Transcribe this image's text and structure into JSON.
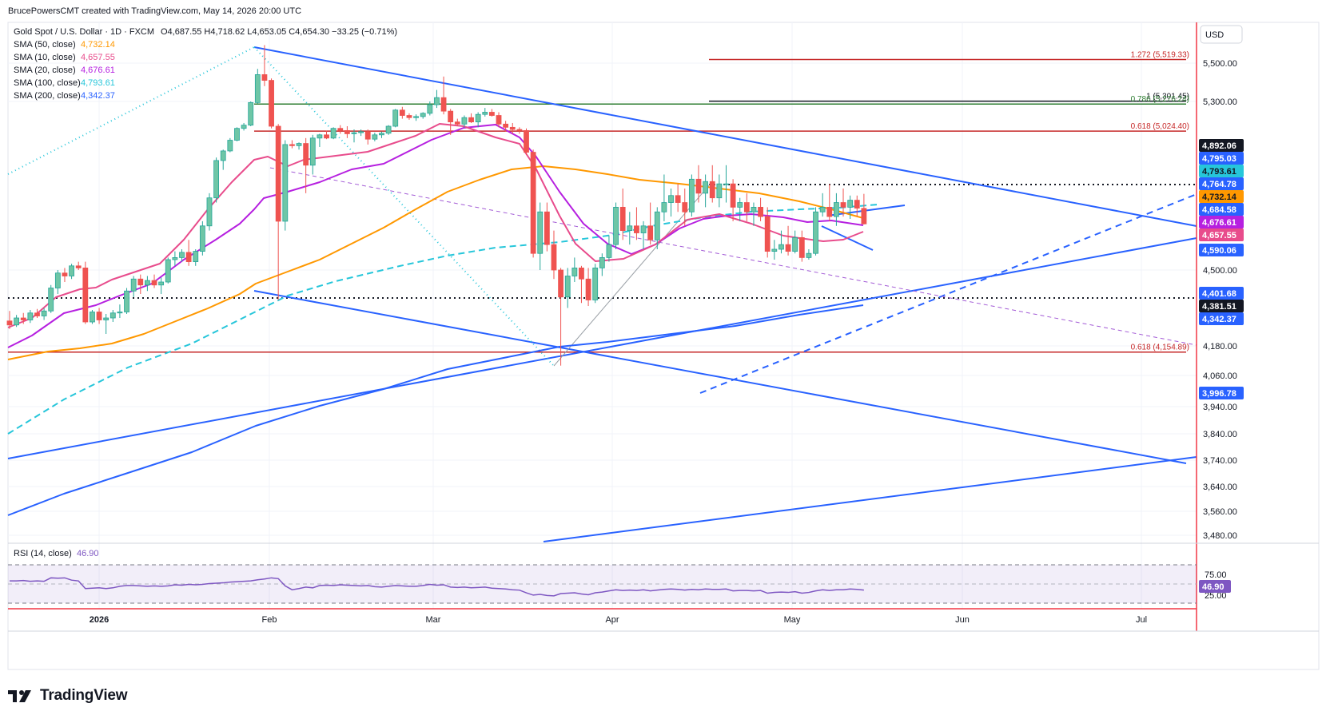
{
  "header": {
    "created_by": "BrucePowersCMT created with TradingView.com, May 14, 2026 20:00 UTC"
  },
  "footer": {
    "brand": "TradingView"
  },
  "colors": {
    "up": "#26a69a",
    "up_fill": "#6ec6a6",
    "down": "#ef5350",
    "sma50": "#ff9800",
    "sma10": "#e84c8c",
    "sma20": "#b620e0",
    "sma100": "#26c6da",
    "sma200": "#2962ff",
    "trend": "#2962ff",
    "fib_red": "#c62828",
    "fib_green": "#2e7d32",
    "rsi": "#7e57c2"
  },
  "chart_data": {
    "type": "candlestick",
    "symbol_line": {
      "name": "Gold Spot / U.S. Dollar · 1D · FXCM",
      "ohlc": "O4,687.55  H4,718.62  L4,653.05  C4,654.30  −33.25 (−0.71%)"
    },
    "legend": [
      {
        "label": "SMA (50, close)",
        "value": "4,732.14",
        "color": "#ff9800"
      },
      {
        "label": "SMA (10, close)",
        "value": "4,657.55",
        "color": "#e84c8c"
      },
      {
        "label": "SMA (20, close)",
        "value": "4,676.61",
        "color": "#b620e0"
      },
      {
        "label": "SMA (100, close)",
        "value": "4,793.61",
        "color": "#26c6da"
      },
      {
        "label": "SMA (200, close)",
        "value": "4,342.37",
        "color": "#2962ff"
      }
    ],
    "currency": "USD",
    "y_ticks": [
      "5,500.00",
      "5,300.00",
      "4,500.00",
      "4,180.00",
      "4,060.00",
      "3,940.00",
      "3,840.00",
      "3,740.00",
      "3,640.00",
      "3,560.00",
      "3,480.00"
    ],
    "x_labels": [
      "2026",
      "Feb",
      "Mar",
      "Apr",
      "May",
      "Jun",
      "Jul"
    ],
    "price_badges": [
      {
        "text": "4,892.06",
        "bg": "#131722",
        "fg": "#ffffff"
      },
      {
        "text": "4,795.03",
        "bg": "#2962ff",
        "fg": "#ffffff"
      },
      {
        "text": "4,793.61",
        "bg": "#26c6da",
        "fg": "#131722"
      },
      {
        "text": "4,764.78",
        "bg": "#2962ff",
        "fg": "#ffffff"
      },
      {
        "text": "4,732.14",
        "bg": "#ff9800",
        "fg": "#131722"
      },
      {
        "text": "4,684.58",
        "bg": "#2962ff",
        "fg": "#ffffff"
      },
      {
        "text": "4,676.61",
        "bg": "#b620e0",
        "fg": "#ffffff"
      },
      {
        "text": "4,657.55",
        "bg": "#e84c8c",
        "fg": "#ffffff"
      },
      {
        "text": "4,590.06",
        "bg": "#2962ff",
        "fg": "#ffffff"
      },
      {
        "text": "4,401.68",
        "bg": "#2962ff",
        "fg": "#ffffff"
      },
      {
        "text": "4,381.51",
        "bg": "#131722",
        "fg": "#ffffff"
      },
      {
        "text": "4,342.37",
        "bg": "#2962ff",
        "fg": "#ffffff"
      },
      {
        "text": "3,996.78",
        "bg": "#2962ff",
        "fg": "#ffffff"
      }
    ],
    "fib_levels": [
      {
        "label": "1.272 (5,519.33)",
        "value": 5519.33,
        "color": "#c62828"
      },
      {
        "label": "1 (5,301.45)",
        "value": 5301.45,
        "color": "#131722"
      },
      {
        "label": "0.786 (5,276.24)",
        "value": 5276.24,
        "color": "#2e7d32"
      },
      {
        "label": "0.618 (5,024.40)",
        "value": 5024.4,
        "color": "#c62828"
      },
      {
        "label": "0.618 (4,154.89)",
        "value": 4154.89,
        "color": "#c62828"
      }
    ],
    "candles": [
      {
        "o": 4305,
        "h": 4355,
        "l": 4265,
        "c": 4285
      },
      {
        "o": 4285,
        "h": 4335,
        "l": 4275,
        "c": 4320
      },
      {
        "o": 4320,
        "h": 4345,
        "l": 4290,
        "c": 4310
      },
      {
        "o": 4310,
        "h": 4360,
        "l": 4295,
        "c": 4345
      },
      {
        "o": 4345,
        "h": 4365,
        "l": 4320,
        "c": 4330
      },
      {
        "o": 4330,
        "h": 4370,
        "l": 4310,
        "c": 4355
      },
      {
        "o": 4355,
        "h": 4450,
        "l": 4345,
        "c": 4440
      },
      {
        "o": 4440,
        "h": 4500,
        "l": 4420,
        "c": 4490
      },
      {
        "o": 4490,
        "h": 4510,
        "l": 4460,
        "c": 4480
      },
      {
        "o": 4480,
        "h": 4530,
        "l": 4470,
        "c": 4520
      },
      {
        "o": 4520,
        "h": 4540,
        "l": 4500,
        "c": 4510
      },
      {
        "o": 4510,
        "h": 4540,
        "l": 4290,
        "c": 4300
      },
      {
        "o": 4300,
        "h": 4360,
        "l": 4290,
        "c": 4350
      },
      {
        "o": 4350,
        "h": 4370,
        "l": 4290,
        "c": 4310
      },
      {
        "o": 4310,
        "h": 4340,
        "l": 4240,
        "c": 4320
      },
      {
        "o": 4320,
        "h": 4360,
        "l": 4300,
        "c": 4345
      },
      {
        "o": 4345,
        "h": 4385,
        "l": 4320,
        "c": 4350
      },
      {
        "o": 4350,
        "h": 4440,
        "l": 4340,
        "c": 4430
      },
      {
        "o": 4430,
        "h": 4480,
        "l": 4410,
        "c": 4470
      },
      {
        "o": 4470,
        "h": 4485,
        "l": 4420,
        "c": 4450
      },
      {
        "o": 4450,
        "h": 4480,
        "l": 4430,
        "c": 4465
      },
      {
        "o": 4465,
        "h": 4485,
        "l": 4440,
        "c": 4450
      },
      {
        "o": 4450,
        "h": 4475,
        "l": 4420,
        "c": 4460
      },
      {
        "o": 4460,
        "h": 4560,
        "l": 4455,
        "c": 4550
      },
      {
        "o": 4550,
        "h": 4590,
        "l": 4520,
        "c": 4560
      },
      {
        "o": 4560,
        "h": 4600,
        "l": 4540,
        "c": 4585
      },
      {
        "o": 4585,
        "h": 4620,
        "l": 4520,
        "c": 4540
      },
      {
        "o": 4540,
        "h": 4600,
        "l": 4520,
        "c": 4590
      },
      {
        "o": 4590,
        "h": 4660,
        "l": 4570,
        "c": 4650
      },
      {
        "o": 4650,
        "h": 4720,
        "l": 4640,
        "c": 4710
      },
      {
        "o": 4710,
        "h": 4800,
        "l": 4700,
        "c": 4790
      },
      {
        "o": 4790,
        "h": 4860,
        "l": 4770,
        "c": 4850
      },
      {
        "o": 4850,
        "h": 4960,
        "l": 4840,
        "c": 4940
      },
      {
        "o": 4940,
        "h": 5060,
        "l": 4930,
        "c": 5050
      },
      {
        "o": 5050,
        "h": 5100,
        "l": 5030,
        "c": 5080
      },
      {
        "o": 5080,
        "h": 5300,
        "l": 5070,
        "c": 5290
      },
      {
        "o": 5290,
        "h": 5470,
        "l": 5280,
        "c": 5440
      },
      {
        "o": 5440,
        "h": 5598,
        "l": 5380,
        "c": 5410
      },
      {
        "o": 5410,
        "h": 5420,
        "l": 5050,
        "c": 5070
      },
      {
        "o": 5070,
        "h": 5090,
        "l": 4400,
        "c": 4660
      },
      {
        "o": 4660,
        "h": 4940,
        "l": 4640,
        "c": 4900
      },
      {
        "o": 4900,
        "h": 4940,
        "l": 4870,
        "c": 4890
      },
      {
        "o": 4890,
        "h": 4920,
        "l": 4860,
        "c": 4910
      },
      {
        "o": 4910,
        "h": 4960,
        "l": 4720,
        "c": 4780
      },
      {
        "o": 4780,
        "h": 4990,
        "l": 4760,
        "c": 4960
      },
      {
        "o": 4960,
        "h": 5000,
        "l": 4880,
        "c": 4990
      },
      {
        "o": 4990,
        "h": 5030,
        "l": 4950,
        "c": 4960
      },
      {
        "o": 4960,
        "h": 5060,
        "l": 4950,
        "c": 5050
      },
      {
        "o": 5050,
        "h": 5080,
        "l": 5000,
        "c": 5030
      },
      {
        "o": 5030,
        "h": 5070,
        "l": 4960,
        "c": 5000
      },
      {
        "o": 5000,
        "h": 5040,
        "l": 4920,
        "c": 5010
      },
      {
        "o": 5010,
        "h": 5040,
        "l": 4980,
        "c": 5020
      },
      {
        "o": 5020,
        "h": 5040,
        "l": 4900,
        "c": 4950
      },
      {
        "o": 4950,
        "h": 5010,
        "l": 4930,
        "c": 4990
      },
      {
        "o": 4990,
        "h": 5020,
        "l": 4960,
        "c": 5005
      },
      {
        "o": 5005,
        "h": 5080,
        "l": 4990,
        "c": 5070
      },
      {
        "o": 5070,
        "h": 5230,
        "l": 5060,
        "c": 5220
      },
      {
        "o": 5220,
        "h": 5250,
        "l": 5140,
        "c": 5170
      },
      {
        "o": 5170,
        "h": 5190,
        "l": 5130,
        "c": 5150
      },
      {
        "o": 5150,
        "h": 5180,
        "l": 5120,
        "c": 5160
      },
      {
        "o": 5160,
        "h": 5200,
        "l": 5140,
        "c": 5190
      },
      {
        "o": 5190,
        "h": 5300,
        "l": 5170,
        "c": 5270
      },
      {
        "o": 5270,
        "h": 5360,
        "l": 5240,
        "c": 5320
      },
      {
        "o": 5320,
        "h": 5430,
        "l": 5180,
        "c": 5210
      },
      {
        "o": 5210,
        "h": 5230,
        "l": 4990,
        "c": 5110
      },
      {
        "o": 5110,
        "h": 5140,
        "l": 5070,
        "c": 5090
      },
      {
        "o": 5090,
        "h": 5170,
        "l": 5060,
        "c": 5150
      },
      {
        "o": 5150,
        "h": 5190,
        "l": 5100,
        "c": 5110
      },
      {
        "o": 5110,
        "h": 5200,
        "l": 5060,
        "c": 5180
      },
      {
        "o": 5180,
        "h": 5240,
        "l": 5160,
        "c": 5200
      },
      {
        "o": 5200,
        "h": 5230,
        "l": 5160,
        "c": 5170
      },
      {
        "o": 5170,
        "h": 5200,
        "l": 5060,
        "c": 5090
      },
      {
        "o": 5090,
        "h": 5120,
        "l": 5020,
        "c": 5060
      },
      {
        "o": 5060,
        "h": 5100,
        "l": 5000,
        "c": 5040
      },
      {
        "o": 5040,
        "h": 5060,
        "l": 5000,
        "c": 5030
      },
      {
        "o": 5030,
        "h": 5050,
        "l": 4820,
        "c": 4840
      },
      {
        "o": 4840,
        "h": 4860,
        "l": 4560,
        "c": 4580
      },
      {
        "o": 4580,
        "h": 4700,
        "l": 4500,
        "c": 4680
      },
      {
        "o": 4680,
        "h": 4700,
        "l": 4590,
        "c": 4610
      },
      {
        "o": 4610,
        "h": 4640,
        "l": 4470,
        "c": 4500
      },
      {
        "o": 4500,
        "h": 4510,
        "l": 4100,
        "c": 4410
      },
      {
        "o": 4410,
        "h": 4510,
        "l": 4370,
        "c": 4480
      },
      {
        "o": 4480,
        "h": 4560,
        "l": 4460,
        "c": 4510
      },
      {
        "o": 4510,
        "h": 4520,
        "l": 4390,
        "c": 4470
      },
      {
        "o": 4470,
        "h": 4510,
        "l": 4380,
        "c": 4400
      },
      {
        "o": 4400,
        "h": 4530,
        "l": 4390,
        "c": 4510
      },
      {
        "o": 4510,
        "h": 4580,
        "l": 4480,
        "c": 4560
      },
      {
        "o": 4560,
        "h": 4630,
        "l": 4540,
        "c": 4610
      },
      {
        "o": 4610,
        "h": 4700,
        "l": 4600,
        "c": 4690
      },
      {
        "o": 4690,
        "h": 4730,
        "l": 4620,
        "c": 4640
      },
      {
        "o": 4640,
        "h": 4680,
        "l": 4610,
        "c": 4650
      },
      {
        "o": 4650,
        "h": 4690,
        "l": 4620,
        "c": 4635
      },
      {
        "o": 4635,
        "h": 4660,
        "l": 4600,
        "c": 4650
      },
      {
        "o": 4650,
        "h": 4700,
        "l": 4610,
        "c": 4620
      },
      {
        "o": 4620,
        "h": 4690,
        "l": 4600,
        "c": 4680
      },
      {
        "o": 4680,
        "h": 4760,
        "l": 4660,
        "c": 4700
      },
      {
        "o": 4700,
        "h": 4730,
        "l": 4670,
        "c": 4715
      },
      {
        "o": 4715,
        "h": 4740,
        "l": 4680,
        "c": 4700
      },
      {
        "o": 4700,
        "h": 4730,
        "l": 4650,
        "c": 4680
      },
      {
        "o": 4680,
        "h": 4760,
        "l": 4670,
        "c": 4750
      },
      {
        "o": 4750,
        "h": 4780,
        "l": 4700,
        "c": 4720
      },
      {
        "o": 4720,
        "h": 4760,
        "l": 4690,
        "c": 4745
      },
      {
        "o": 4745,
        "h": 4780,
        "l": 4700,
        "c": 4710
      },
      {
        "o": 4710,
        "h": 4760,
        "l": 4690,
        "c": 4740
      },
      {
        "o": 4740,
        "h": 4780,
        "l": 4700,
        "c": 4740
      },
      {
        "o": 4740,
        "h": 4750,
        "l": 4660,
        "c": 4690
      },
      {
        "o": 4690,
        "h": 4710,
        "l": 4660,
        "c": 4700
      },
      {
        "o": 4700,
        "h": 4720,
        "l": 4660,
        "c": 4680
      },
      {
        "o": 4680,
        "h": 4700,
        "l": 4650,
        "c": 4690
      },
      {
        "o": 4690,
        "h": 4710,
        "l": 4660,
        "c": 4670
      },
      {
        "o": 4670,
        "h": 4690,
        "l": 4560,
        "c": 4590
      },
      {
        "o": 4590,
        "h": 4620,
        "l": 4550,
        "c": 4600
      },
      {
        "o": 4600,
        "h": 4640,
        "l": 4580,
        "c": 4610
      },
      {
        "o": 4610,
        "h": 4650,
        "l": 4570,
        "c": 4590
      },
      {
        "o": 4590,
        "h": 4640,
        "l": 4580,
        "c": 4625
      },
      {
        "o": 4625,
        "h": 4640,
        "l": 4540,
        "c": 4560
      },
      {
        "o": 4560,
        "h": 4600,
        "l": 4550,
        "c": 4580
      },
      {
        "o": 4580,
        "h": 4690,
        "l": 4570,
        "c": 4680
      },
      {
        "o": 4680,
        "h": 4720,
        "l": 4670,
        "c": 4690
      },
      {
        "o": 4690,
        "h": 4740,
        "l": 4660,
        "c": 4670
      },
      {
        "o": 4670,
        "h": 4720,
        "l": 4650,
        "c": 4700
      },
      {
        "o": 4700,
        "h": 4730,
        "l": 4670,
        "c": 4690
      },
      {
        "o": 4690,
        "h": 4715,
        "l": 4665,
        "c": 4705
      },
      {
        "o": 4705,
        "h": 4715,
        "l": 4670,
        "c": 4688
      },
      {
        "o": 4687.55,
        "h": 4718.62,
        "l": 4653.05,
        "c": 4654.3
      }
    ],
    "rsi": {
      "label": "RSI (14, close)",
      "value": "46.90",
      "ticks": [
        "75.00",
        "25.00"
      ],
      "values": [
        58,
        58,
        59,
        57,
        58,
        57,
        66,
        65,
        66,
        60,
        58,
        38,
        39,
        40,
        38,
        40,
        44,
        46,
        46,
        45,
        44,
        45,
        44,
        45,
        48,
        47,
        49,
        48,
        49,
        51,
        52,
        53,
        55,
        56,
        57,
        58,
        61,
        63,
        66,
        64,
        45,
        35,
        38,
        42,
        40,
        46,
        47,
        46,
        48,
        47,
        46,
        45,
        46,
        43,
        42,
        44,
        46,
        45,
        44,
        44,
        46,
        49,
        47,
        48,
        42,
        41,
        42,
        40,
        41,
        42,
        39,
        38,
        37,
        35,
        34,
        27,
        21,
        23,
        20,
        19,
        25,
        26,
        27,
        24,
        22,
        27,
        29,
        32,
        35,
        33,
        34,
        33,
        35,
        32,
        34,
        36,
        37,
        36,
        34,
        36,
        35,
        37,
        36,
        36,
        37,
        32,
        33,
        33,
        32,
        33,
        26,
        28,
        29,
        28,
        30,
        26,
        28,
        32,
        35,
        33,
        35,
        35,
        37,
        36,
        34
      ]
    }
  }
}
